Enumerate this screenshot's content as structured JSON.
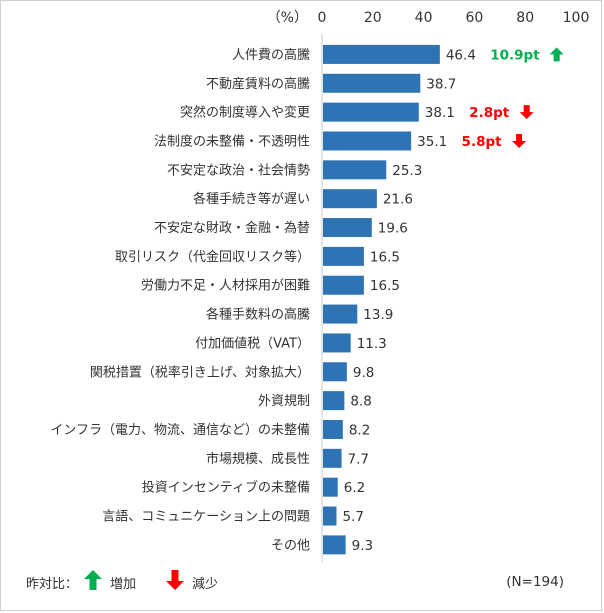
{
  "chart_data": {
    "type": "bar",
    "orientation": "horizontal",
    "unit_label": "（%）",
    "ticks": [
      0,
      20,
      40,
      60,
      80,
      100
    ],
    "xlim": [
      0,
      100
    ],
    "bar_color": "#2e74b5",
    "categories": [
      "人件費の高騰",
      "不動産賃料の高騰",
      "突然の制度導入や変更",
      "法制度の未整備・不透明性",
      "不安定な政治・社会情勢",
      "各種手続き等が遅い",
      "不安定な財政・金融・為替",
      "取引リスク（代金回収リスク等）",
      "労働力不足・人材採用が困難",
      "各種手数料の高騰",
      "付加価値税（VAT）",
      "関税措置（税率引き上げ、対象拡大）",
      "外資規制",
      "インフラ（電力、物流、通信など）の未整備",
      "市場規模、成長性",
      "投資インセンティブの未整備",
      "言語、コミュニケーション上の問題",
      "その他"
    ],
    "values": [
      46.4,
      38.7,
      38.1,
      35.1,
      25.3,
      21.6,
      19.6,
      16.5,
      16.5,
      13.9,
      11.3,
      9.8,
      8.8,
      8.2,
      7.7,
      6.2,
      5.7,
      9.3
    ],
    "value_labels": [
      "46.4",
      "38.7",
      "38.1",
      "35.1",
      "25.3",
      "21.6",
      "19.6",
      "16.5",
      "16.5",
      "13.9",
      "11.3",
      "9.8",
      "8.8",
      "8.2",
      "7.7",
      "6.2",
      "5.7",
      "9.3"
    ],
    "changes": [
      {
        "index": 0,
        "label": "10.9pt",
        "direction": "up",
        "color": "#00b050"
      },
      {
        "index": 2,
        "label": "2.8pt",
        "direction": "down",
        "color": "#ff0000"
      },
      {
        "index": 3,
        "label": "5.8pt",
        "direction": "down",
        "color": "#ff0000"
      }
    ]
  },
  "legend": {
    "prefix": "昨対比：",
    "increase": "増加",
    "decrease": "減少",
    "increase_color": "#00b050",
    "decrease_color": "#ff0000"
  },
  "note": "(N=194)"
}
